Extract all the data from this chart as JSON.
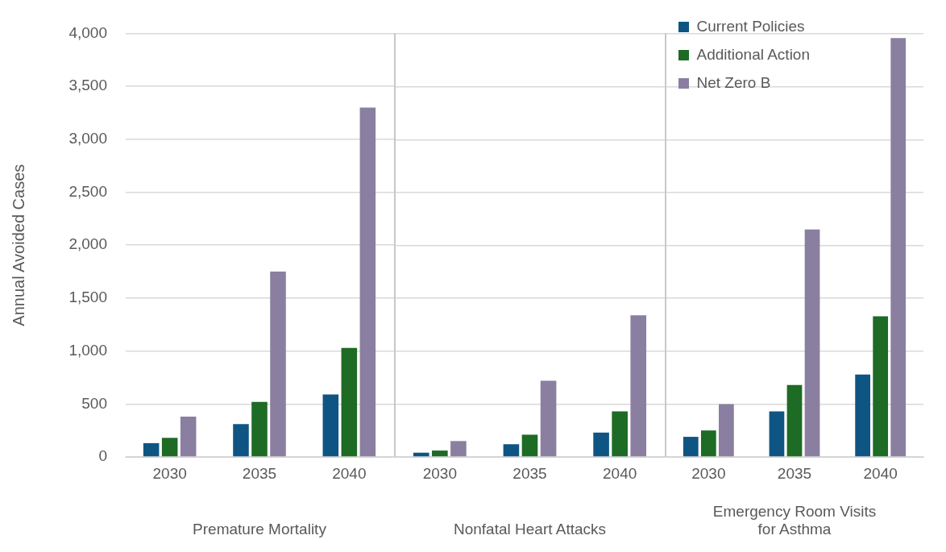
{
  "chart_data": [
    {
      "type": "bar",
      "xlabel": "Premature Mortality",
      "ylabel": "Annual Avoided Cases",
      "categories": [
        "2030",
        "2035",
        "2040"
      ],
      "series": [
        {
          "color": "#0f5583",
          "values": [
            130,
            310,
            590
          ]
        },
        {
          "color": "#1d6b24",
          "values": [
            180,
            520,
            1030
          ]
        },
        {
          "color": "#8a7fa0",
          "values": [
            380,
            1750,
            3300
          ]
        }
      ],
      "ylim": [
        0,
        4000
      ],
      "yticks": [
        0,
        500,
        {
          "value": 1000,
          "label": "1,000"
        },
        {
          "value": 1500,
          "label": "1,500"
        },
        {
          "value": 2000,
          "label": "2,000"
        },
        {
          "value": 2500,
          "label": "2,500"
        },
        {
          "value": 3000,
          "label": "3,000"
        },
        {
          "value": 3500,
          "label": "3,500"
        },
        {
          "value": 4000,
          "label": "4,000"
        }
      ],
      "grid": "y"
    },
    {
      "type": "bar",
      "xlabel": "Nonfatal Heart Attacks",
      "categories": [
        "2030",
        "2035",
        "2040"
      ],
      "series": [
        {
          "color": "#0f5583",
          "values": [
            40,
            120,
            230
          ]
        },
        {
          "color": "#1d6b24",
          "values": [
            60,
            210,
            430
          ]
        },
        {
          "color": "#8a7fa0",
          "values": [
            150,
            720,
            1340
          ]
        }
      ],
      "ylim": [
        0,
        4000
      ],
      "yticks": [
        0,
        500,
        1000,
        1500,
        2000,
        2500,
        3000,
        3500,
        4000
      ],
      "tick_labels": "x",
      "grid": "y"
    },
    {
      "type": "bar",
      "xlabel": "Emergency Room Visits for Asthma",
      "categories": [
        "2030",
        "2035",
        "2040"
      ],
      "series": [
        {
          "name": "Current Policies",
          "color": "#0f5583",
          "values": [
            190,
            430,
            780
          ]
        },
        {
          "name": "Additional Action",
          "color": "#1d6b24",
          "values": [
            250,
            680,
            1330
          ]
        },
        {
          "name": "Net Zero B",
          "color": "#8a7fa0",
          "values": [
            500,
            2150,
            3960
          ]
        }
      ],
      "ylim": [
        0,
        4000
      ],
      "yticks": [
        0,
        500,
        1000,
        1500,
        2000,
        2500,
        3000,
        3500,
        4000
      ],
      "tick_labels": "x",
      "grid": "y",
      "legend": "top left"
    }
  ]
}
